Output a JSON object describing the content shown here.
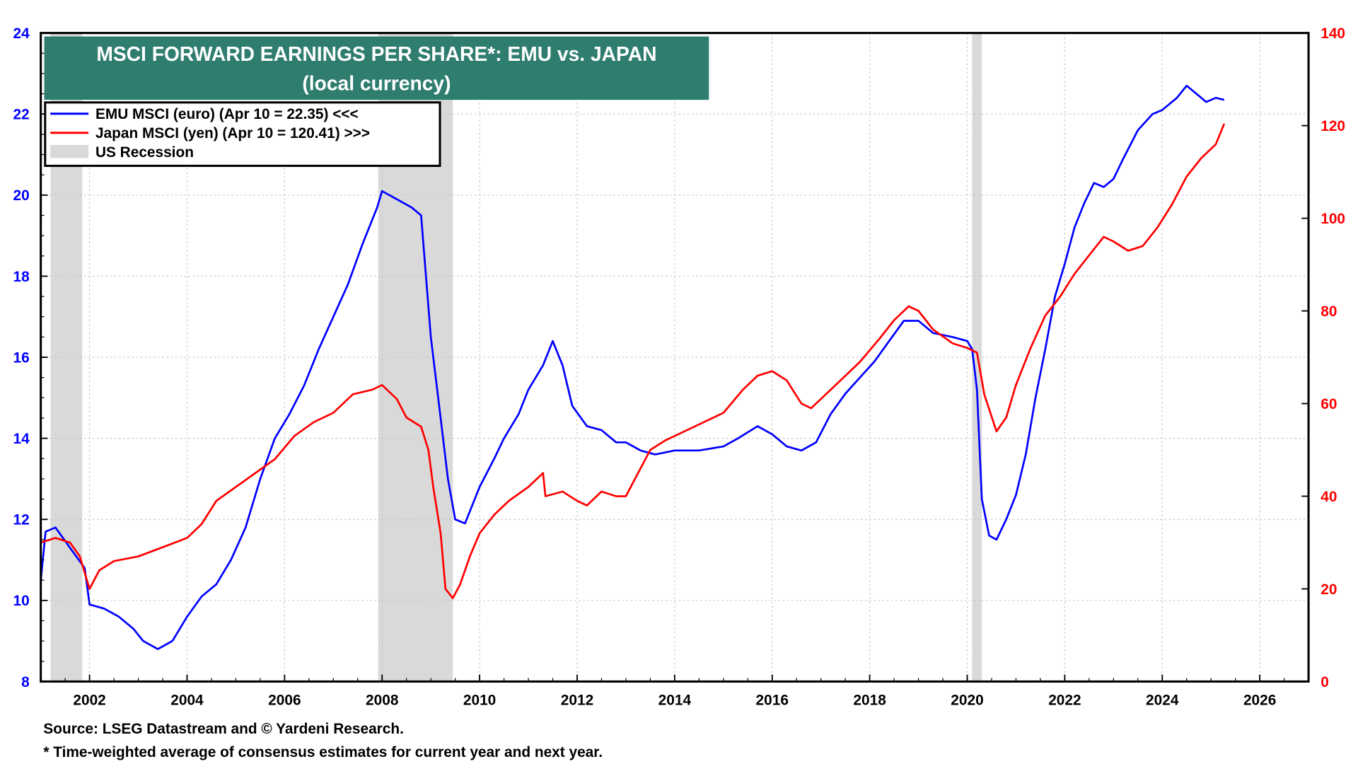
{
  "chart_data": {
    "type": "line",
    "title": "MSCI FORWARD EARNINGS PER SHARE*: EMU vs. JAPAN",
    "subtitle": "(local currency)",
    "xlim": [
      2001.0,
      2027.0
    ],
    "x_ticks": [
      "2002",
      "2004",
      "2006",
      "2008",
      "2010",
      "2012",
      "2014",
      "2016",
      "2018",
      "2020",
      "2022",
      "2024",
      "2026"
    ],
    "y_left": {
      "lim": [
        8,
        24
      ],
      "ticks": [
        "8",
        "10",
        "12",
        "14",
        "16",
        "18",
        "20",
        "22",
        "24"
      ],
      "color": "#0000ff"
    },
    "y_right": {
      "lim": [
        0,
        140
      ],
      "ticks": [
        "0",
        "20",
        "40",
        "60",
        "80",
        "100",
        "120",
        "140"
      ],
      "color": "#ff0000"
    },
    "grid": true,
    "legend_placement": "top-left",
    "legend": [
      {
        "label": "EMU MSCI (euro) (Apr 10 = 22.35) <<<",
        "color": "#0000ff"
      },
      {
        "label": "Japan MSCI (yen) (Apr 10 = 120.41) >>>",
        "color": "#ff0000"
      },
      {
        "label": "US Recession",
        "color": "#d9d9d9"
      }
    ],
    "recessions": [
      [
        2001.2,
        2001.85
      ],
      [
        2007.92,
        2009.45
      ],
      [
        2020.1,
        2020.3
      ]
    ],
    "series": [
      {
        "name": "EMU MSCI (euro)",
        "axis": "left",
        "color": "#0000ff",
        "x": [
          2001.0,
          2001.1,
          2001.3,
          2001.6,
          2001.9,
          2002.0,
          2002.3,
          2002.6,
          2002.9,
          2003.1,
          2003.4,
          2003.7,
          2004.0,
          2004.3,
          2004.6,
          2004.9,
          2005.2,
          2005.5,
          2005.8,
          2006.1,
          2006.4,
          2006.7,
          2007.0,
          2007.3,
          2007.6,
          2007.9,
          2008.0,
          2008.3,
          2008.6,
          2008.8,
          2008.9,
          2009.0,
          2009.2,
          2009.35,
          2009.5,
          2009.7,
          2010.0,
          2010.3,
          2010.5,
          2010.8,
          2011.0,
          2011.3,
          2011.5,
          2011.7,
          2011.9,
          2012.2,
          2012.5,
          2012.8,
          2013.0,
          2013.3,
          2013.6,
          2014.0,
          2014.5,
          2015.0,
          2015.3,
          2015.7,
          2016.0,
          2016.3,
          2016.6,
          2016.9,
          2017.2,
          2017.5,
          2017.8,
          2018.1,
          2018.4,
          2018.7,
          2019.0,
          2019.3,
          2019.7,
          2020.0,
          2020.1,
          2020.2,
          2020.3,
          2020.45,
          2020.6,
          2020.8,
          2021.0,
          2021.2,
          2021.4,
          2021.6,
          2021.8,
          2022.0,
          2022.2,
          2022.4,
          2022.6,
          2022.8,
          2023.0,
          2023.2,
          2023.5,
          2023.8,
          2024.0,
          2024.3,
          2024.5,
          2024.7,
          2024.9,
          2025.1,
          2025.27
        ],
        "y": [
          10.5,
          11.7,
          11.8,
          11.3,
          10.8,
          9.9,
          9.8,
          9.6,
          9.3,
          9.0,
          8.8,
          9.0,
          9.6,
          10.1,
          10.4,
          11.0,
          11.8,
          13.0,
          14.0,
          14.6,
          15.3,
          16.2,
          17.0,
          17.8,
          18.8,
          19.7,
          20.1,
          19.9,
          19.7,
          19.5,
          18.0,
          16.5,
          14.5,
          13.0,
          12.0,
          11.9,
          12.8,
          13.5,
          14.0,
          14.6,
          15.2,
          15.8,
          16.4,
          15.8,
          14.8,
          14.3,
          14.2,
          13.9,
          13.9,
          13.7,
          13.6,
          13.7,
          13.7,
          13.8,
          14.0,
          14.3,
          14.1,
          13.8,
          13.7,
          13.9,
          14.6,
          15.1,
          15.5,
          15.9,
          16.4,
          16.9,
          16.9,
          16.6,
          16.5,
          16.4,
          16.2,
          15.2,
          12.5,
          11.6,
          11.5,
          12.0,
          12.6,
          13.6,
          15.0,
          16.2,
          17.5,
          18.3,
          19.2,
          19.8,
          20.3,
          20.2,
          20.4,
          20.9,
          21.6,
          22.0,
          22.1,
          22.4,
          22.7,
          22.5,
          22.3,
          22.4,
          22.35
        ]
      },
      {
        "name": "Japan MSCI (yen)",
        "axis": "right",
        "color": "#ff0000",
        "x": [
          2001.0,
          2001.3,
          2001.6,
          2001.8,
          2002.0,
          2002.2,
          2002.5,
          2003.0,
          2003.5,
          2004.0,
          2004.3,
          2004.6,
          2005.0,
          2005.4,
          2005.8,
          2006.2,
          2006.6,
          2007.0,
          2007.4,
          2007.8,
          2008.0,
          2008.3,
          2008.5,
          2008.8,
          2008.95,
          2009.05,
          2009.2,
          2009.3,
          2009.45,
          2009.6,
          2009.8,
          2010.0,
          2010.3,
          2010.6,
          2011.0,
          2011.3,
          2011.35,
          2011.7,
          2012.0,
          2012.2,
          2012.5,
          2012.8,
          2013.0,
          2013.2,
          2013.5,
          2013.8,
          2014.2,
          2014.6,
          2015.0,
          2015.4,
          2015.7,
          2016.0,
          2016.3,
          2016.6,
          2016.8,
          2017.1,
          2017.4,
          2017.8,
          2018.2,
          2018.5,
          2018.8,
          2019.0,
          2019.3,
          2019.7,
          2020.0,
          2020.2,
          2020.35,
          2020.6,
          2020.8,
          2021.0,
          2021.3,
          2021.6,
          2021.9,
          2022.2,
          2022.5,
          2022.8,
          2023.0,
          2023.3,
          2023.6,
          2023.9,
          2024.2,
          2024.5,
          2024.8,
          2025.1,
          2025.27
        ],
        "y": [
          30,
          31,
          30,
          27,
          20,
          24,
          26,
          27,
          29,
          31,
          34,
          39,
          42,
          45,
          48,
          53,
          56,
          58,
          62,
          63,
          64,
          61,
          57,
          55,
          50,
          42,
          32,
          20,
          18,
          21,
          27,
          32,
          36,
          39,
          42,
          45,
          40,
          41,
          39,
          38,
          41,
          40,
          40,
          44,
          50,
          52,
          54,
          56,
          58,
          63,
          66,
          67,
          65,
          60,
          59,
          62,
          65,
          69,
          74,
          78,
          81,
          80,
          76,
          73,
          72,
          71,
          62,
          54,
          57,
          64,
          72,
          79,
          83,
          88,
          92,
          96,
          95,
          93,
          94,
          98,
          103,
          109,
          113,
          116,
          120.41
        ]
      }
    ],
    "footnotes": [
      "Source: LSEG Datastream and © Yardeni Research.",
      "* Time-weighted average of consensus estimates for current year and next year."
    ]
  }
}
